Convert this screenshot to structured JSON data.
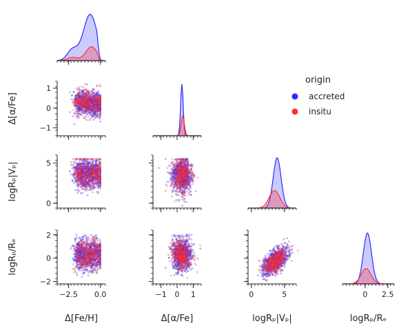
{
  "chart_data": {
    "type": "pairplot",
    "hue_title": "origin",
    "series": [
      {
        "name": "accreted",
        "color": "#2b2bff"
      },
      {
        "name": "insitu",
        "color": "#ff3030"
      }
    ],
    "variables": [
      {
        "key": "dfe",
        "label": "Δ[Fe/H]",
        "lim": [
          -3.4,
          0.4
        ],
        "ticks": [
          -2.5,
          0.0
        ],
        "tick_labels": [
          "−2.5",
          "0.0"
        ]
      },
      {
        "key": "dalpha",
        "label": "Δ[α/Fe]",
        "lim": [
          -1.5,
          1.5
        ],
        "ticks": [
          -1,
          0,
          1
        ],
        "tick_labels": [
          "−1",
          "0",
          "1"
        ]
      },
      {
        "key": "vp",
        "label": "logRₚ|Vₚ|",
        "lim": [
          -0.5,
          6.8
        ],
        "ticks": [
          0,
          5
        ],
        "tick_labels": [
          "0",
          "5"
        ]
      },
      {
        "key": "re",
        "label": "logRₚ/Rₑ",
        "lim": [
          -2.5,
          3.2
        ],
        "ticks": [
          0,
          2.5
        ],
        "tick_labels": [
          "0",
          "2.5"
        ]
      }
    ],
    "y_axes": [
      {
        "key": "dalpha",
        "label": "Δ[α/Fe]",
        "lim": [
          -1.4,
          1.35
        ],
        "ticks": [
          -1,
          0,
          1
        ],
        "tick_labels": [
          "−1",
          "0",
          "1"
        ]
      },
      {
        "key": "vp",
        "label": "logRₚ|Vₚ|",
        "lim": [
          -0.6,
          6.0
        ],
        "ticks": [
          0,
          5
        ],
        "tick_labels": [
          "0",
          "5"
        ]
      },
      {
        "key": "re",
        "label": "logRₚ/Rₑ",
        "lim": [
          -2.2,
          2.4
        ],
        "ticks": [
          -2,
          0,
          2
        ],
        "tick_labels": [
          "−2",
          "0",
          "2"
        ]
      }
    ],
    "distributions": {
      "dfe": {
        "accreted": {
          "center": -0.8,
          "sd": 0.55,
          "amp": 1.0
        },
        "insitu": {
          "center": -0.7,
          "sd": 0.45,
          "amp": 0.3
        }
      },
      "dalpha": {
        "accreted": {
          "center": 0.3,
          "sd": 0.08,
          "amp": 1.0
        },
        "insitu": {
          "center": 0.35,
          "sd": 0.1,
          "amp": 0.38
        }
      },
      "vp": {
        "accreted": {
          "center": 3.9,
          "sd": 0.6,
          "amp": 1.0
        },
        "insitu": {
          "center": 3.5,
          "sd": 0.8,
          "amp": 0.35
        }
      },
      "re": {
        "accreted": {
          "center": 0.25,
          "sd": 0.45,
          "amp": 1.0
        },
        "insitu": {
          "center": 0.1,
          "sd": 0.55,
          "amp": 0.3
        }
      }
    },
    "grid": false,
    "legend_position": "top-right"
  }
}
